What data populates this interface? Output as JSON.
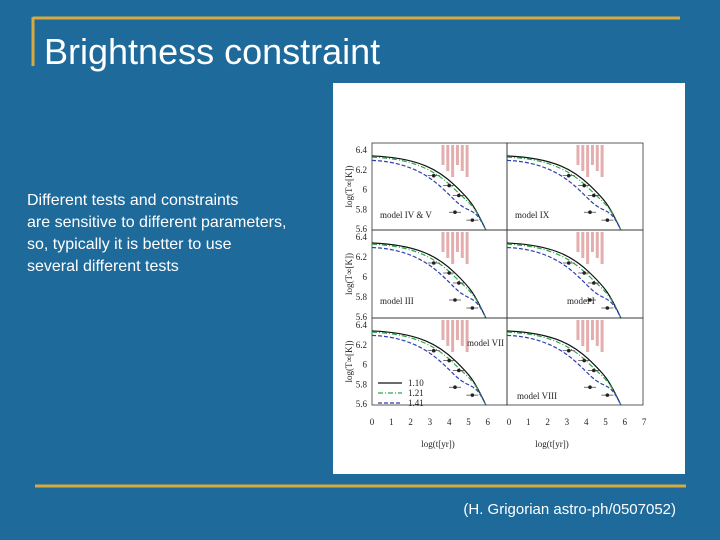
{
  "title": "Brightness constraint",
  "body": [
    "Different tests and constraints",
    "are sensitive to different parameters,",
    "so, typically it is better to use",
    "several different tests"
  ],
  "citation": "(H. Grigorian astro-ph/0507052)",
  "figure": {
    "y_label": "log(T∞[K])",
    "x_label": "log(t[yr])",
    "y_ticks": [
      "6.4",
      "6.2",
      "6",
      "5.8",
      "5.6"
    ],
    "x_ticks_left": [
      "0",
      "1",
      "2",
      "3",
      "4",
      "5",
      "6"
    ],
    "x_ticks_right": [
      "0",
      "1",
      "2",
      "3",
      "4",
      "5",
      "6",
      "7"
    ],
    "panels": [
      {
        "label": "model IV & V"
      },
      {
        "label": "model IX"
      },
      {
        "label": "model III"
      },
      {
        "label": "model I"
      },
      {
        "label": "model VII"
      },
      {
        "label": "model VIII"
      }
    ],
    "legend": [
      "1.10",
      "1.21",
      "1.41"
    ]
  }
}
